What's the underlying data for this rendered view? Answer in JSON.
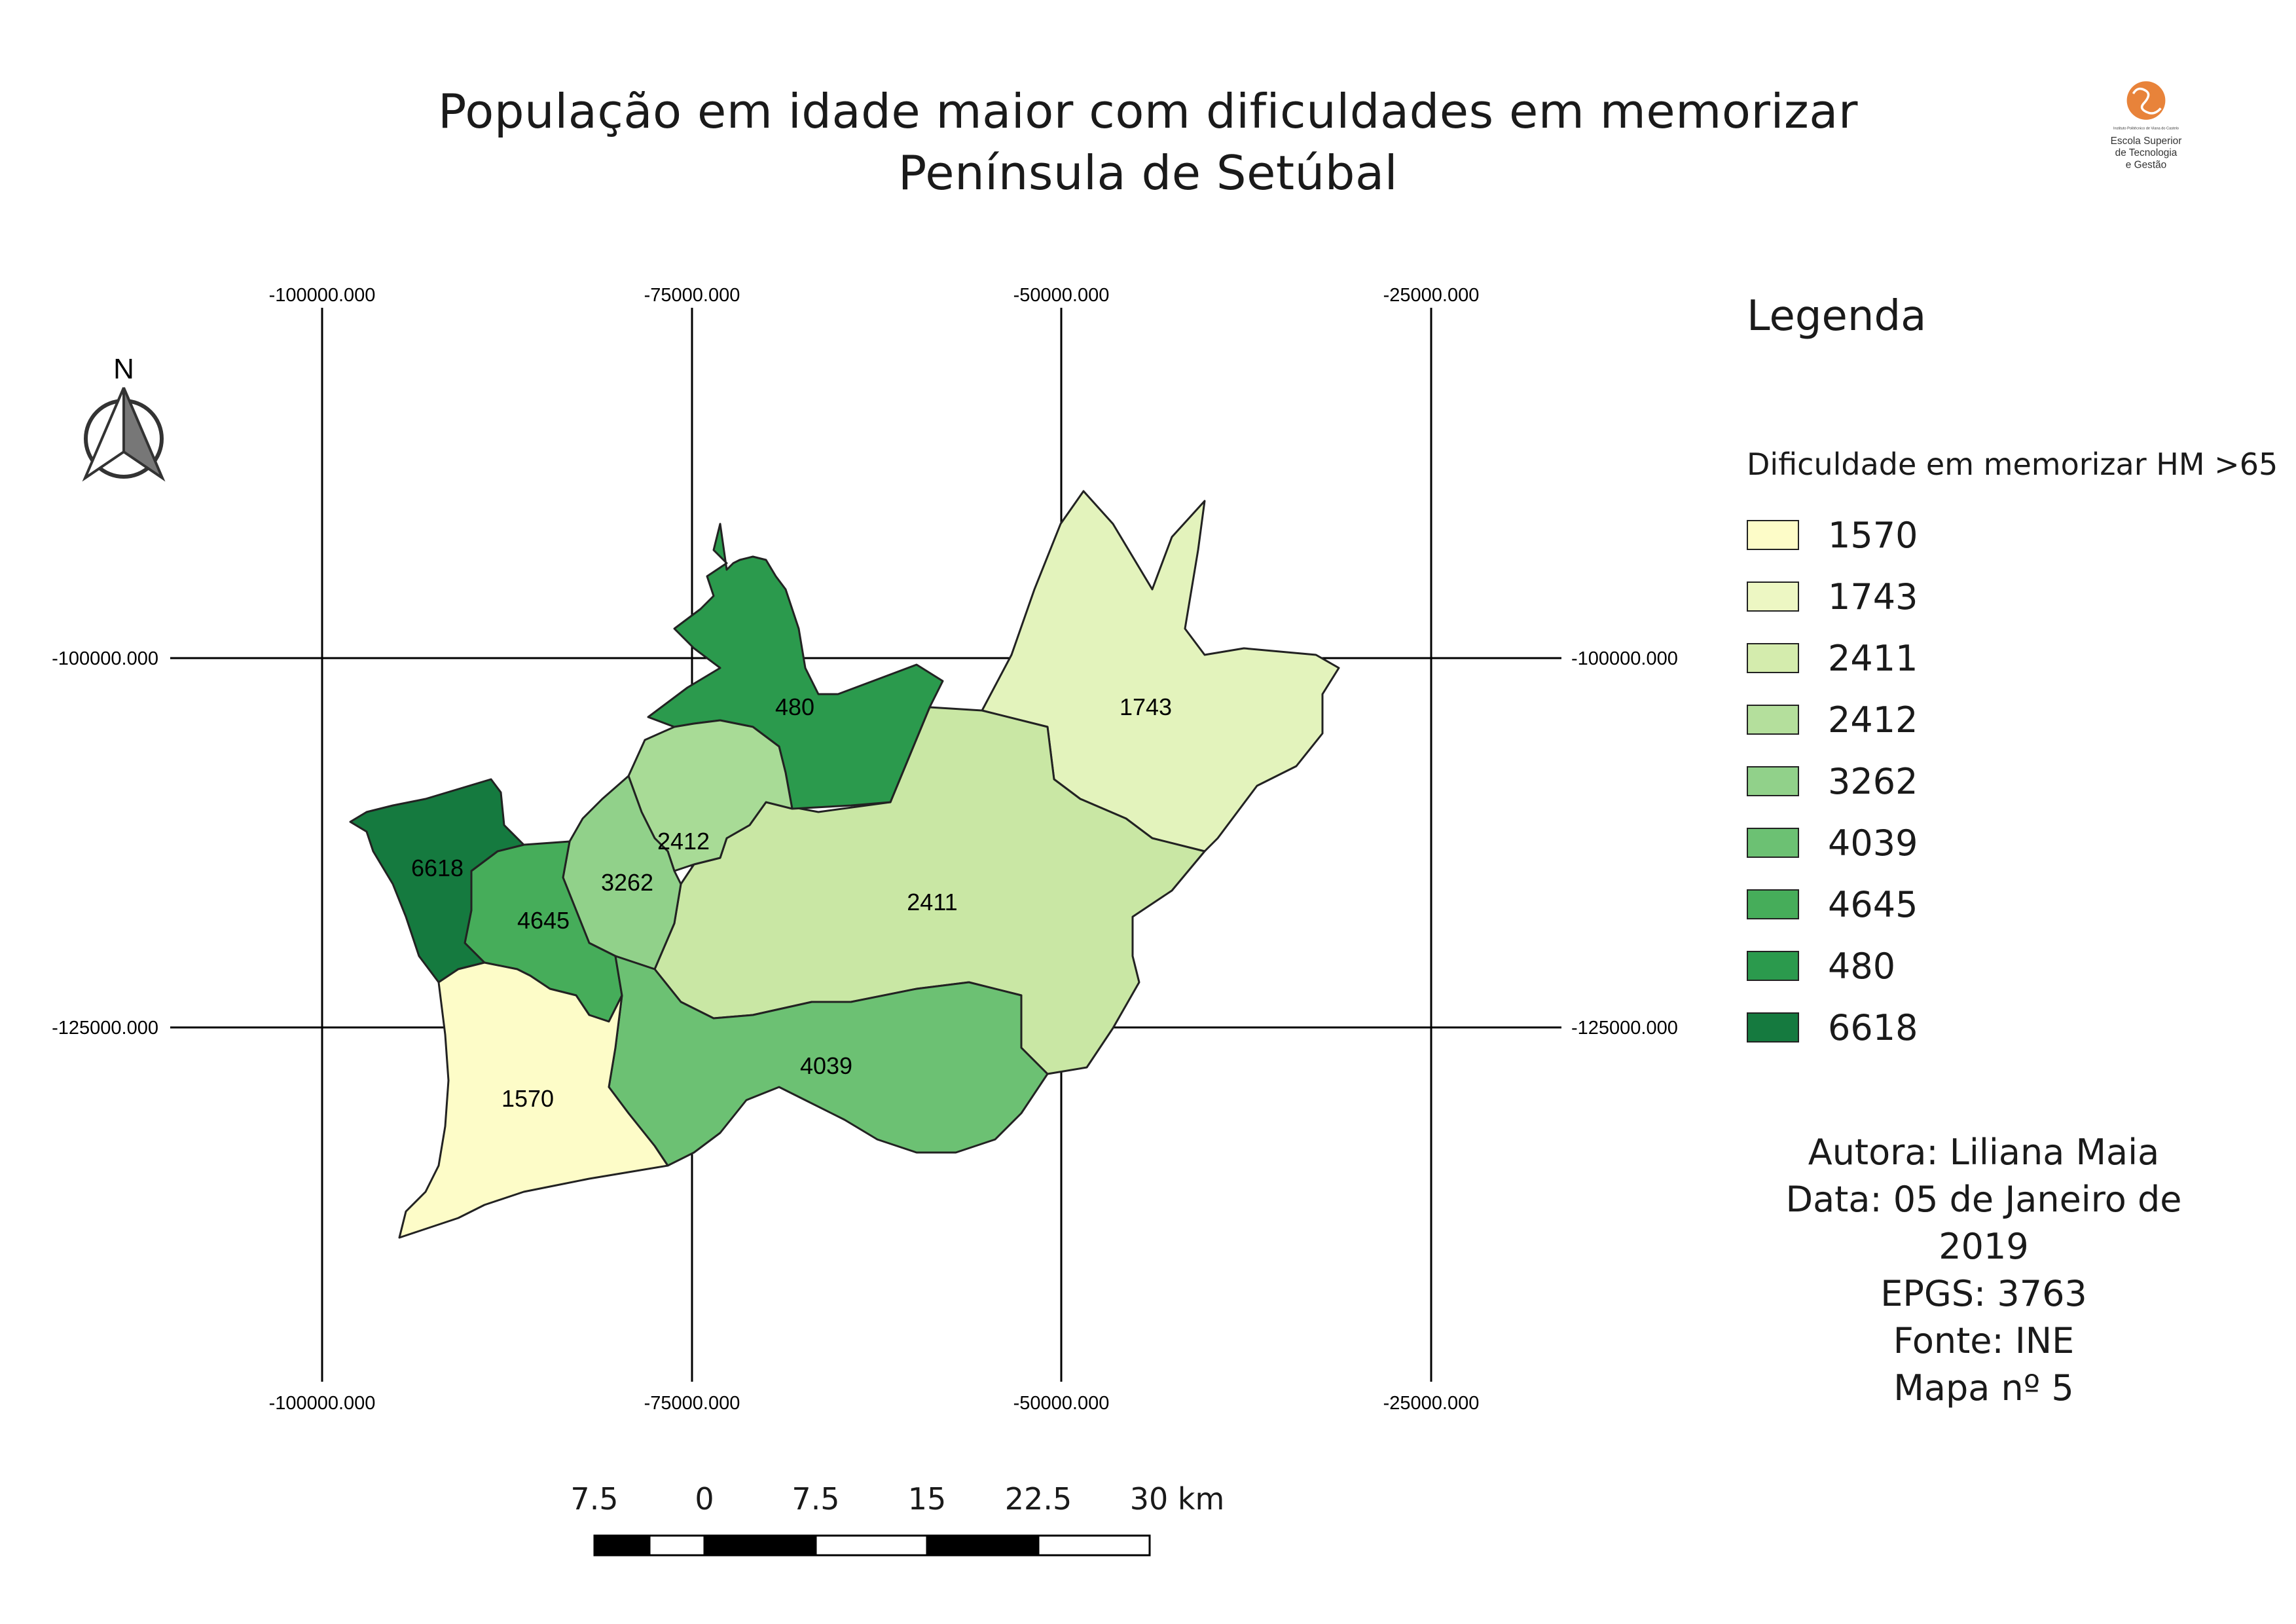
{
  "map": {
    "title_line1": "População em idade maior com dificuldades em memorizar",
    "title_line2": "Península de Setúbal",
    "north_label": "N",
    "grid": {
      "x_labels": [
        "-100000.000",
        "-75000.000",
        "-50000.000",
        "-25000.000"
      ],
      "y_labels": [
        "-100000.000",
        "-125000.000"
      ]
    },
    "regions": [
      {
        "value": "6618",
        "color": "#157a3f"
      },
      {
        "value": "480",
        "color": "#2b9a4d"
      },
      {
        "value": "4645",
        "color": "#46ad5a"
      },
      {
        "value": "4039",
        "color": "#6cc173"
      },
      {
        "value": "3262",
        "color": "#91d18a"
      },
      {
        "value": "2412",
        "color": "#a8db96"
      },
      {
        "value": "2411",
        "color": "#c9e7a4"
      },
      {
        "value": "1743",
        "color": "#e3f3bc"
      },
      {
        "value": "1570",
        "color": "#fdfcc8"
      }
    ]
  },
  "legend": {
    "title": "Legenda",
    "subtitle": "Dificuldade em memorizar HM >65",
    "items": [
      {
        "label": "1570",
        "color": "#fdfcc8"
      },
      {
        "label": "1743",
        "color": "#edf7c3"
      },
      {
        "label": "2411",
        "color": "#d4ecad"
      },
      {
        "label": "2412",
        "color": "#b4df9c"
      },
      {
        "label": "3262",
        "color": "#91d18a"
      },
      {
        "label": "4039",
        "color": "#6cc173"
      },
      {
        "label": "4645",
        "color": "#46ad5a"
      },
      {
        "label": "480",
        "color": "#2b9a4d"
      },
      {
        "label": "6618",
        "color": "#157a3f"
      }
    ]
  },
  "credits": {
    "line1": "Autora: Liliana Maia",
    "line2": "Data: 05 de Janeiro de",
    "line3": "2019",
    "line4": "EPGS: 3763",
    "line5": "Fonte: INE",
    "line6": "Mapa nº 5"
  },
  "scalebar": {
    "labels": [
      "7.5",
      "0",
      "7.5",
      "15",
      "22.5",
      "30 km"
    ]
  },
  "logo": {
    "institute": "Instituto Politécnico de Viana do Castelo",
    "line1": "Escola Superior",
    "line2": "de Tecnologia",
    "line3": "e Gestão"
  }
}
